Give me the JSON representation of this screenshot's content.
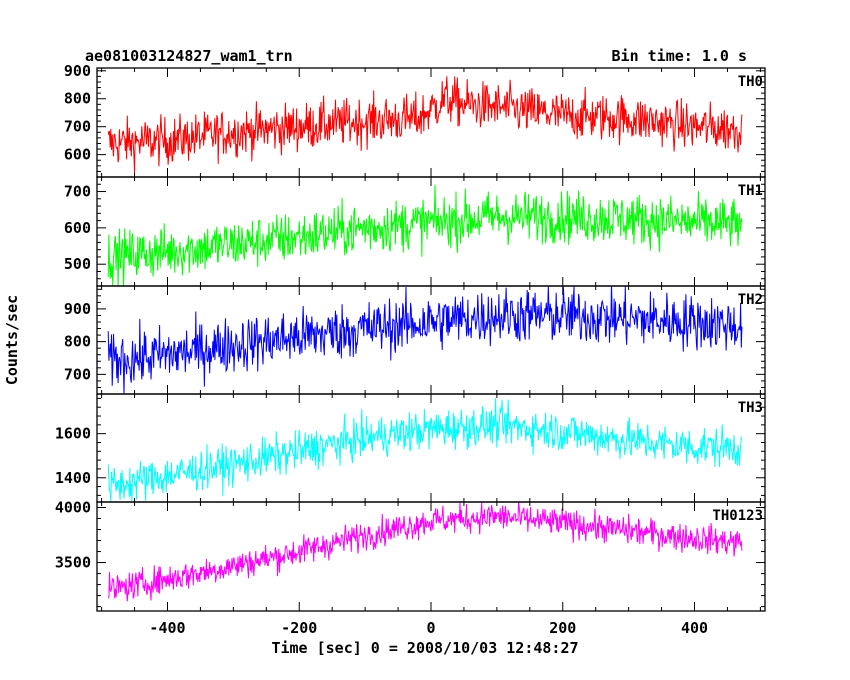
{
  "header": {
    "title": "ae081003124827_wam1_trn",
    "bin_time": "Bin time: 1.0 s"
  },
  "axis": {
    "xlabel": "Time [sec] 0 = 2008/10/03 12:48:27",
    "ylabel": "Counts/sec"
  },
  "chart_data": {
    "type": "line",
    "x_range": [
      -507,
      507
    ],
    "x_ticks": [
      -400,
      -200,
      0,
      200,
      400
    ],
    "data_x_range": [
      -490,
      472
    ],
    "bin_time_s": 1.0,
    "shared_x": true,
    "panels": [
      {
        "name": "TH0",
        "color": "#ff0000",
        "ylim": [
          520,
          910
        ],
        "yticks": [
          600,
          700,
          800,
          900
        ],
        "trend_x": [
          -490,
          -400,
          -300,
          -200,
          -100,
          -20,
          0,
          20,
          50,
          100,
          200,
          300,
          400,
          472
        ],
        "trend_y": [
          640,
          650,
          680,
          700,
          720,
          730,
          760,
          800,
          780,
          770,
          740,
          730,
          700,
          690
        ],
        "scatter": 42
      },
      {
        "name": "TH1",
        "color": "#00ff00",
        "ylim": [
          440,
          740
        ],
        "yticks": [
          500,
          600,
          700
        ],
        "trend_x": [
          -490,
          -400,
          -300,
          -200,
          -100,
          0,
          100,
          200,
          300,
          400,
          472
        ],
        "trend_y": [
          520,
          535,
          555,
          575,
          600,
          615,
          630,
          630,
          625,
          615,
          610
        ],
        "scatter": 35
      },
      {
        "name": "TH2",
        "color": "#0000ff",
        "ylim": [
          640,
          970
        ],
        "yticks": [
          700,
          800,
          900
        ],
        "trend_x": [
          -490,
          -400,
          -300,
          -200,
          -100,
          0,
          100,
          200,
          300,
          400,
          472
        ],
        "trend_y": [
          740,
          760,
          790,
          815,
          840,
          860,
          880,
          880,
          870,
          860,
          850
        ],
        "scatter": 42
      },
      {
        "name": "TH3",
        "color": "#00ffff",
        "ylim": [
          1290,
          1780
        ],
        "yticks": [
          1400,
          1600
        ],
        "trend_x": [
          -490,
          -400,
          -300,
          -200,
          -100,
          0,
          100,
          200,
          300,
          400,
          472
        ],
        "trend_y": [
          1360,
          1410,
          1460,
          1520,
          1580,
          1620,
          1640,
          1610,
          1570,
          1540,
          1540
        ],
        "scatter": 45
      },
      {
        "name": "TH0123",
        "color": "#ff00ff",
        "ylim": [
          3060,
          4050
        ],
        "yticks": [
          3500,
          4000
        ],
        "trend_x": [
          -490,
          -400,
          -300,
          -200,
          -100,
          0,
          100,
          200,
          300,
          400,
          472
        ],
        "trend_y": [
          3250,
          3350,
          3470,
          3600,
          3750,
          3880,
          3920,
          3860,
          3790,
          3720,
          3680
        ],
        "scatter": 65
      }
    ]
  }
}
